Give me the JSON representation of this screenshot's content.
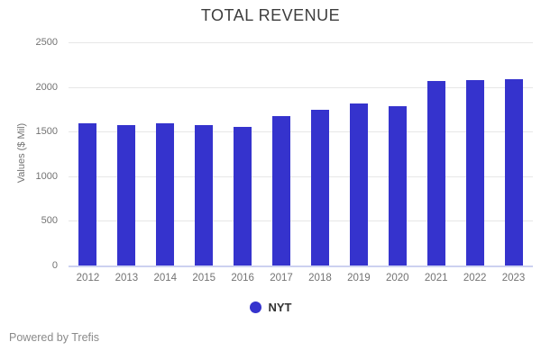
{
  "chart_data": {
    "type": "bar",
    "title": "TOTAL REVENUE",
    "xlabel": "",
    "ylabel": "Values ($ Mil)",
    "categories": [
      "2012",
      "2013",
      "2014",
      "2015",
      "2016",
      "2017",
      "2018",
      "2019",
      "2020",
      "2021",
      "2022",
      "2023"
    ],
    "series": [
      {
        "name": "NYT",
        "values": [
          1590,
          1570,
          1590,
          1575,
          1550,
          1670,
          1745,
          1810,
          1780,
          2070,
          2080,
          2090
        ]
      }
    ],
    "ylim": [
      0,
      2500
    ],
    "yticks": [
      0,
      500,
      1000,
      1500,
      2000,
      2500
    ],
    "grid": "horizontal",
    "legend_position": "bottom"
  },
  "footer": {
    "text": "Powered by Trefis"
  },
  "colors": {
    "bar": "#3533cd",
    "grid": "#e7e7e7",
    "axis_line": "#ccd1f0",
    "tick_text": "#737373",
    "title_text": "#3d3d3d",
    "legend_text": "#333333",
    "footer_text": "#8a8a8a",
    "background": "#ffffff"
  }
}
